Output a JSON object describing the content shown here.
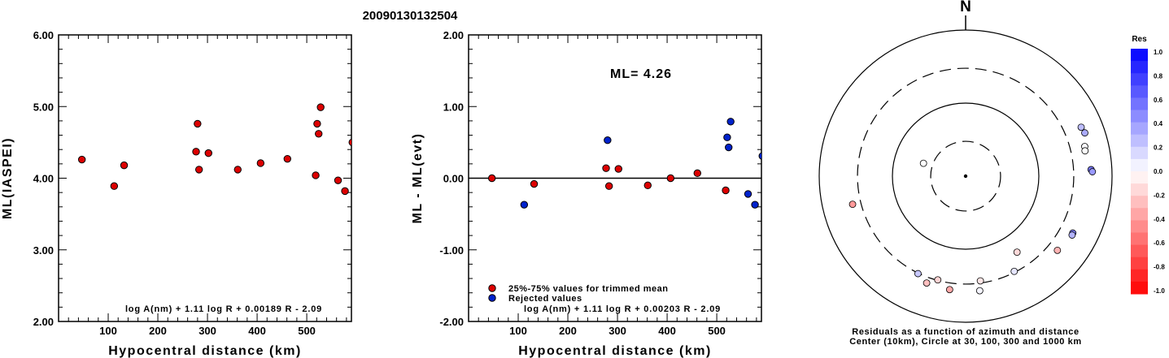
{
  "page_title": "20090130132504",
  "chart_data": [
    {
      "type": "scatter",
      "title": "",
      "xlabel": "Hypocentral distance (km)",
      "ylabel": "ML(IASPEI)",
      "xlim": [
        0,
        590
      ],
      "ylim": [
        2.0,
        6.0
      ],
      "x_ticks": [
        100,
        200,
        300,
        400,
        500
      ],
      "y_ticks": [
        2.0,
        3.0,
        4.0,
        5.0,
        6.0
      ],
      "y_tick_labels": [
        "2.00",
        "3.00",
        "4.00",
        "5.00",
        "6.00"
      ],
      "formula": "log A(nm) + 1.11 log R + 0.00189 R - 2.09",
      "marker_color": "#dd0000",
      "points": [
        {
          "x": 47,
          "y": 4.26
        },
        {
          "x": 112,
          "y": 3.89
        },
        {
          "x": 132,
          "y": 4.18
        },
        {
          "x": 277,
          "y": 4.37
        },
        {
          "x": 280,
          "y": 4.76
        },
        {
          "x": 283,
          "y": 4.12
        },
        {
          "x": 302,
          "y": 4.35
        },
        {
          "x": 361,
          "y": 4.12
        },
        {
          "x": 407,
          "y": 4.21
        },
        {
          "x": 461,
          "y": 4.27
        },
        {
          "x": 518,
          "y": 4.04
        },
        {
          "x": 521,
          "y": 4.76
        },
        {
          "x": 524,
          "y": 4.62
        },
        {
          "x": 528,
          "y": 4.99
        },
        {
          "x": 563,
          "y": 3.97
        },
        {
          "x": 577,
          "y": 3.82
        },
        {
          "x": 592,
          "y": 4.5
        }
      ]
    },
    {
      "type": "scatter",
      "title": "",
      "xlabel": "Hypocentral distance (km)",
      "ylabel": "ML - ML(evt)",
      "xlim": [
        0,
        590
      ],
      "ylim": [
        -2.0,
        2.0
      ],
      "x_ticks": [
        100,
        200,
        300,
        400,
        500
      ],
      "y_ticks": [
        -2.0,
        -1.0,
        0.0,
        1.0,
        2.0
      ],
      "y_tick_labels": [
        "-2.00",
        "-1.00",
        "0.00",
        "1.00",
        "2.00"
      ],
      "annotation": "ML= 4.26",
      "formula": "log A(nm) + 1.11 log R + 0.00203 R - 2.09",
      "legend": [
        {
          "label": "25%-75% values for trimmed mean",
          "color": "#dd0000"
        },
        {
          "label": "Rejected values",
          "color": "#0022cc"
        }
      ],
      "series": [
        {
          "name": "25%-75% values for trimmed mean",
          "color": "#dd0000",
          "points": [
            {
              "x": 47,
              "y": 0.0
            },
            {
              "x": 132,
              "y": -0.08
            },
            {
              "x": 277,
              "y": 0.14
            },
            {
              "x": 283,
              "y": -0.11
            },
            {
              "x": 302,
              "y": 0.13
            },
            {
              "x": 361,
              "y": -0.1
            },
            {
              "x": 407,
              "y": 0.0
            },
            {
              "x": 461,
              "y": 0.07
            },
            {
              "x": 518,
              "y": -0.17
            }
          ]
        },
        {
          "name": "Rejected values",
          "color": "#0022cc",
          "points": [
            {
              "x": 112,
              "y": -0.37
            },
            {
              "x": 280,
              "y": 0.53
            },
            {
              "x": 521,
              "y": 0.57
            },
            {
              "x": 524,
              "y": 0.43
            },
            {
              "x": 528,
              "y": 0.79
            },
            {
              "x": 563,
              "y": -0.22
            },
            {
              "x": 577,
              "y": -0.37
            },
            {
              "x": 592,
              "y": 0.31
            }
          ]
        }
      ]
    },
    {
      "type": "polar-scatter",
      "north_label": "N",
      "caption_line1": "Residuals as a function of azimuth and distance",
      "caption_line2": "Center (10km), Circle at 30, 100, 300 and 1000 km",
      "rings_km": [
        30,
        100,
        300,
        1000
      ],
      "points": [
        {
          "azimuth": 67,
          "distance_km": 518,
          "res": 0.26
        },
        {
          "azimuth": 70,
          "distance_km": 540,
          "res": 0.33
        },
        {
          "azimuth": 76,
          "distance_km": 475,
          "res": 0.02
        },
        {
          "azimuth": 78,
          "distance_km": 465,
          "res": 0.0
        },
        {
          "azimuth": 87,
          "distance_km": 520,
          "res": 0.52
        },
        {
          "azimuth": 88,
          "distance_km": 540,
          "res": 0.4
        },
        {
          "azimuth": 118,
          "distance_km": 455,
          "res": 0.5
        },
        {
          "azimuth": 119,
          "distance_km": 460,
          "res": 0.3
        },
        {
          "azimuth": 129,
          "distance_km": 410,
          "res": -0.3
        },
        {
          "azimuth": 146,
          "distance_km": 180,
          "res": -0.15
        },
        {
          "azimuth": 153,
          "distance_km": 290,
          "res": 0.1
        },
        {
          "azimuth": 173,
          "distance_km": 380,
          "res": 0.04
        },
        {
          "azimuth": 172,
          "distance_km": 280,
          "res": -0.1
        },
        {
          "azimuth": 188,
          "distance_km": 370,
          "res": -0.34
        },
        {
          "azimuth": 195,
          "distance_km": 295,
          "res": -0.17
        },
        {
          "azimuth": 200,
          "distance_km": 360,
          "res": -0.25
        },
        {
          "azimuth": 206,
          "distance_km": 305,
          "res": 0.22
        },
        {
          "azimuth": 287,
          "distance_km": 40,
          "res": 0.0
        },
        {
          "azimuth": 256,
          "distance_km": 390,
          "res": -0.4
        }
      ]
    },
    {
      "type": "colorbar",
      "title": "Res",
      "ticks": [
        "1.0",
        "0.8",
        "0.6",
        "0.4",
        "0.2",
        "0.0",
        "-0.2",
        "-0.4",
        "-0.6",
        "-0.8",
        "-1.0"
      ],
      "max_color": "#0000ff",
      "min_color": "#ff0000",
      "mid_color": "#ffffff"
    }
  ]
}
